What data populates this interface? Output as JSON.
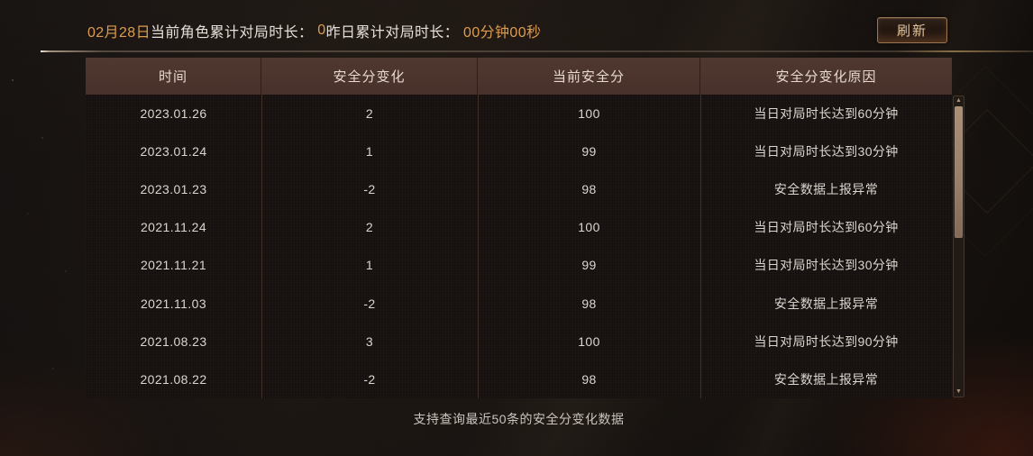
{
  "topbar": {
    "date": "02月28日",
    "today_label": "当前角色累计对局时长： ",
    "today_value": "0",
    "yesterday_label": "昨日累计对局时长： ",
    "yesterday_value": "00分钟00秒",
    "refresh_label": "刷新"
  },
  "table": {
    "columns": [
      "时间",
      "安全分变化",
      "当前安全分",
      "安全分变化原因"
    ],
    "rows": [
      [
        "2023.01.26",
        "2",
        "100",
        "当日对局时长达到60分钟"
      ],
      [
        "2023.01.24",
        "1",
        "99",
        "当日对局时长达到30分钟"
      ],
      [
        "2023.01.23",
        "-2",
        "98",
        "安全数据上报异常"
      ],
      [
        "2021.11.24",
        "2",
        "100",
        "当日对局时长达到60分钟"
      ],
      [
        "2021.11.21",
        "1",
        "99",
        "当日对局时长达到30分钟"
      ],
      [
        "2021.11.03",
        "-2",
        "98",
        "安全数据上报异常"
      ],
      [
        "2021.08.23",
        "3",
        "100",
        "当日对局时长达到90分钟"
      ],
      [
        "2021.08.22",
        "-2",
        "98",
        "安全数据上报异常"
      ]
    ]
  },
  "footnote": "支持查询最近50条的安全分变化数据",
  "icons": {
    "scroll_up": "▲",
    "scroll_down": "▼"
  },
  "colors": {
    "accent": "#dd9c4f",
    "header_bg": "#4a332b",
    "scroll_thumb": "#9a7f69"
  }
}
